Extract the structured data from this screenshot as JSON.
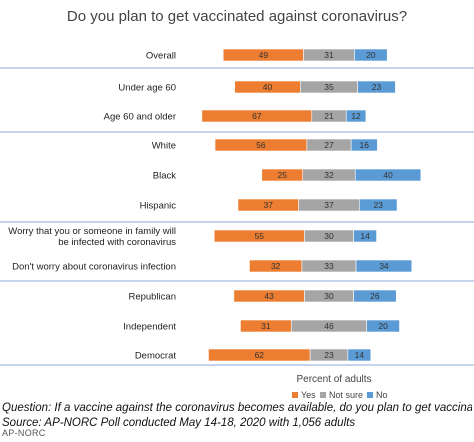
{
  "chart_data": {
    "type": "bar",
    "stacked": true,
    "orientation": "horizontal",
    "title": "Do you plan to get vaccinated against coronavirus?",
    "xlabel": "Percent of adults",
    "categories": [
      [
        "Overall"
      ],
      [
        "Under age 60"
      ],
      [
        "Age 60 and older"
      ],
      [
        "White"
      ],
      [
        "Black"
      ],
      [
        "Hispanic"
      ],
      [
        "Worry that you or someone in family will",
        "be infected with coronavirus"
      ],
      [
        "Don't worry about coronavirus infection"
      ],
      [
        "Republican"
      ],
      [
        "Independent"
      ],
      [
        "Democrat"
      ]
    ],
    "series": [
      {
        "name": "Yes",
        "color": "#ED7D31",
        "values": [
          49,
          40,
          67,
          56,
          25,
          37,
          55,
          32,
          43,
          31,
          62
        ]
      },
      {
        "name": "Not sure",
        "color": "#A5A5A5",
        "values": [
          31,
          35,
          21,
          27,
          32,
          37,
          30,
          33,
          30,
          46,
          23
        ]
      },
      {
        "name": "No",
        "color": "#5B9BD5",
        "values": [
          20,
          23,
          12,
          16,
          40,
          23,
          14,
          34,
          26,
          20,
          14
        ]
      }
    ],
    "legend_position": "bottom"
  },
  "footer": {
    "question": "Question: If a vaccine against the coronavirus becomes available, do you plan to get vaccinated, or not?",
    "source": "Source: AP-NORC Poll conducted May 14-18, 2020 with 1,056 adults",
    "credit": "AP-NORC"
  }
}
